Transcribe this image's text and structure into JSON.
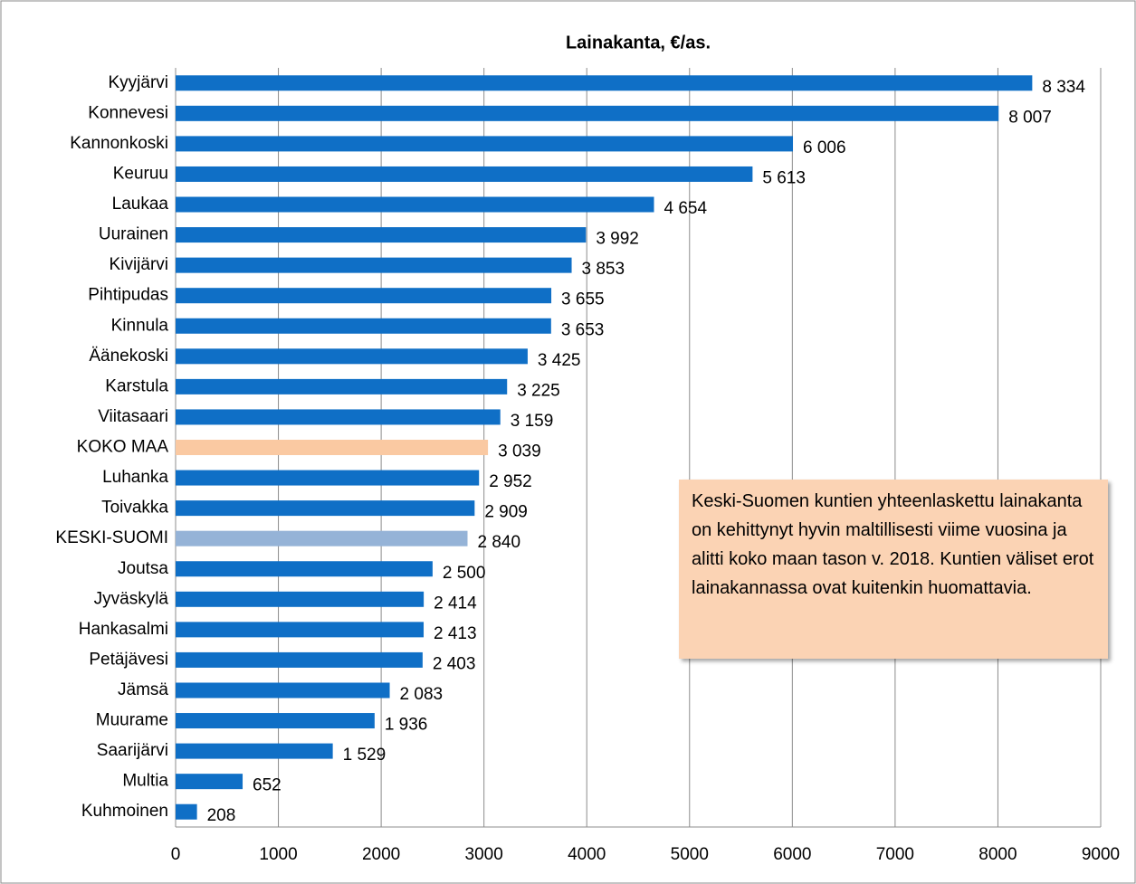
{
  "chart_data": {
    "type": "hbar",
    "title": "Lainakanta, €/as.",
    "categories": [
      "Kyyjärvi",
      "Konnevesi",
      "Kannonkoski",
      "Keuruu",
      "Laukaa",
      "Uurainen",
      "Kivijärvi",
      "Pihtipudas",
      "Kinnula",
      "Äänekoski",
      "Karstula",
      "Viitasaari",
      "KOKO MAA",
      "Luhanka",
      "Toivakka",
      "KESKI-SUOMI",
      "Joutsa",
      "Jyväskylä",
      "Hankasalmi",
      "Petäjävesi",
      "Jämsä",
      "Muurame",
      "Saarijärvi",
      "Multia",
      "Kuhmoinen"
    ],
    "values": [
      8334,
      8007,
      6006,
      5613,
      4654,
      3992,
      3853,
      3655,
      3653,
      3425,
      3225,
      3159,
      3039,
      2952,
      2909,
      2840,
      2500,
      2414,
      2413,
      2403,
      2083,
      1936,
      1529,
      652,
      208
    ],
    "value_labels": [
      "8 334",
      "8 007",
      "6 006",
      "5 613",
      "4 654",
      "3 992",
      "3 853",
      "3 655",
      "3 653",
      "3 425",
      "3 225",
      "3 159",
      "3 039",
      "2 952",
      "2 909",
      "2 840",
      "2 500",
      "2 414",
      "2 413",
      "2 403",
      "2 083",
      "1 936",
      "1 529",
      "652",
      "208"
    ],
    "colors": [
      "#0f6fc6",
      "#0f6fc6",
      "#0f6fc6",
      "#0f6fc6",
      "#0f6fc6",
      "#0f6fc6",
      "#0f6fc6",
      "#0f6fc6",
      "#0f6fc6",
      "#0f6fc6",
      "#0f6fc6",
      "#0f6fc6",
      "#fac9a2",
      "#0f6fc6",
      "#0f6fc6",
      "#95b3d7",
      "#0f6fc6",
      "#0f6fc6",
      "#0f6fc6",
      "#0f6fc6",
      "#0f6fc6",
      "#0f6fc6",
      "#0f6fc6",
      "#0f6fc6",
      "#0f6fc6"
    ],
    "xlim": [
      0,
      9000
    ],
    "xticks": [
      0,
      1000,
      2000,
      3000,
      4000,
      5000,
      6000,
      7000,
      8000,
      9000
    ],
    "grid": true,
    "annotation": "Keski-Suomen kuntien yhteenlaskettu lainakanta on kehittynyt hyvin maltillisesti viime vuosina ja alitti koko maan tason v. 2018. Kuntien väliset erot lainakannassa ovat kuitenkin huomattavia."
  }
}
